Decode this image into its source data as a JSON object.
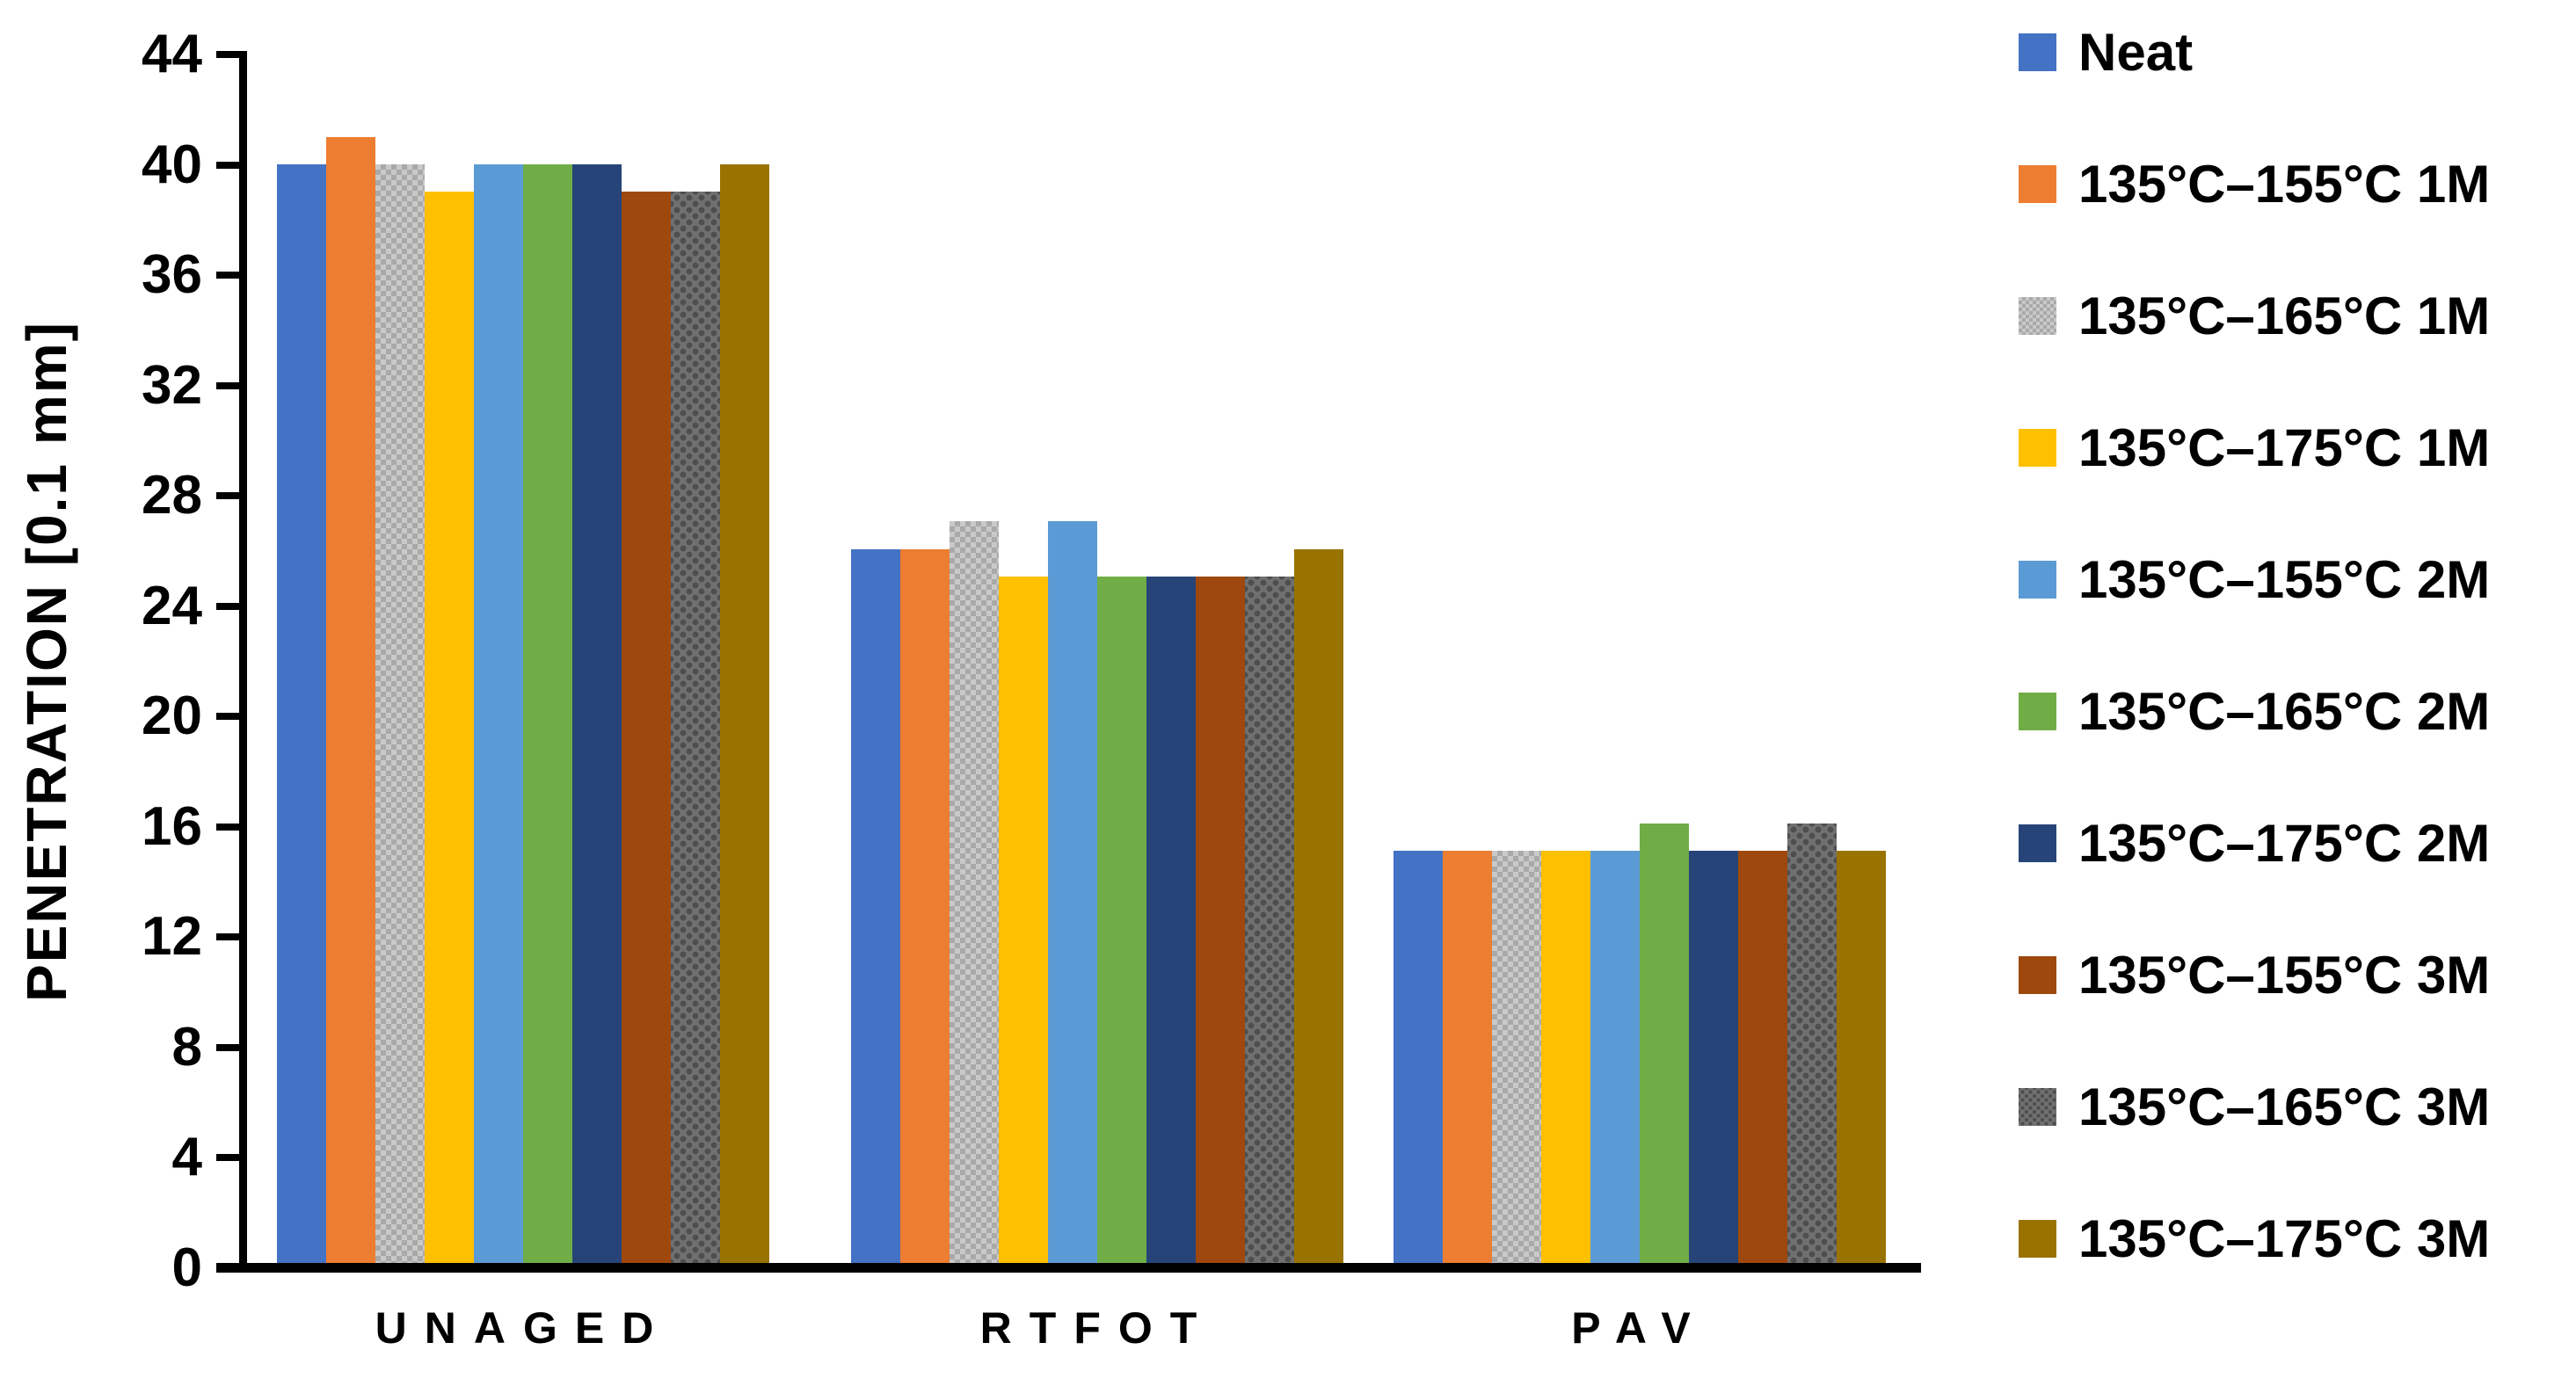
{
  "chart_data": {
    "type": "bar",
    "title": "",
    "xlabel": "",
    "ylabel": "PENETRATION [0.1 mm]",
    "categories": [
      "UNAGED",
      "RTFOT",
      "PAV"
    ],
    "series": [
      {
        "name": "Neat",
        "color": "#4472C4",
        "pattern": "solid",
        "values": [
          40,
          26,
          15
        ]
      },
      {
        "name": "135°C–155°C 1M",
        "color": "#ED7D31",
        "pattern": "solid",
        "values": [
          41,
          26,
          15
        ]
      },
      {
        "name": "135°C–165°C 1M",
        "color": "#C9C9C9",
        "pattern": "checker-light",
        "values": [
          40,
          27,
          15
        ]
      },
      {
        "name": "135°C–175°C 1M",
        "color": "#FFC000",
        "pattern": "solid",
        "values": [
          39,
          25,
          15
        ]
      },
      {
        "name": "135°C–155°C 2M",
        "color": "#5B9BD5",
        "pattern": "solid",
        "values": [
          40,
          27,
          15
        ]
      },
      {
        "name": "135°C–165°C 2M",
        "color": "#70AD47",
        "pattern": "solid",
        "values": [
          40,
          25,
          16
        ]
      },
      {
        "name": "135°C–175°C 2M",
        "color": "#264478",
        "pattern": "solid",
        "values": [
          40,
          25,
          15
        ]
      },
      {
        "name": "135°C–155°C 3M",
        "color": "#9E480E",
        "pattern": "solid",
        "values": [
          39,
          25,
          15
        ]
      },
      {
        "name": "135°C–165°C 3M",
        "color": "#707070",
        "pattern": "dots-dark",
        "values": [
          39,
          25,
          16
        ]
      },
      {
        "name": "135°C–175°C 3M",
        "color": "#997300",
        "pattern": "solid",
        "values": [
          40,
          26,
          15
        ]
      }
    ],
    "ylim": [
      0,
      44
    ],
    "ytick_step": 4,
    "yticks": [
      0,
      4,
      8,
      12,
      16,
      20,
      24,
      28,
      32,
      36,
      40,
      44
    ],
    "grid": false,
    "legend_position": "right",
    "axis_color": "#000000"
  }
}
